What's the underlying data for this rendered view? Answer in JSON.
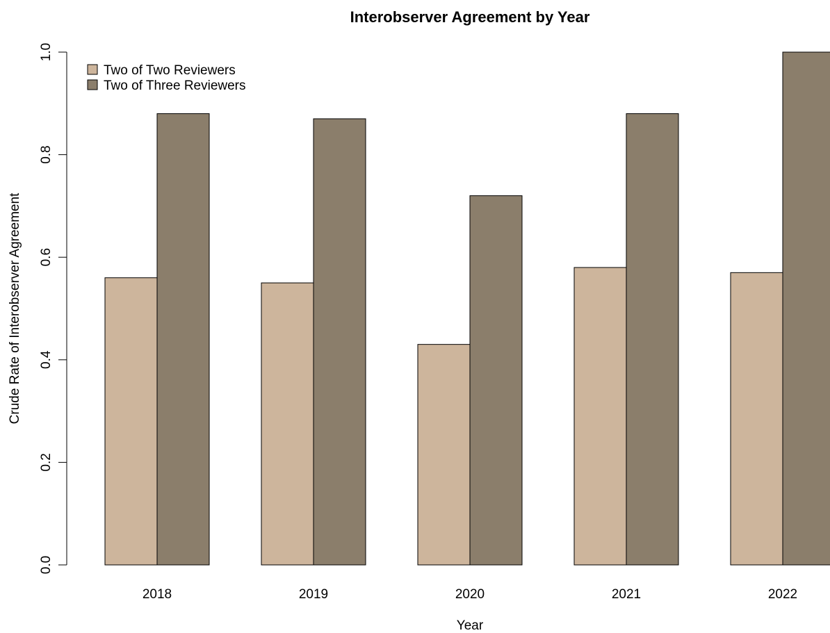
{
  "chart_data": {
    "type": "bar",
    "title": "Interobserver Agreement by Year",
    "xlabel": "Year",
    "ylabel": "Crude Rate of Interobserver Agreement",
    "categories": [
      "2018",
      "2019",
      "2020",
      "2021",
      "2022"
    ],
    "series": [
      {
        "name": "Two of Two Reviewers",
        "color": "#cdb59c",
        "values": [
          0.56,
          0.55,
          0.43,
          0.58,
          0.57
        ]
      },
      {
        "name": "Two of Three Reviewers",
        "color": "#8b7e6b",
        "values": [
          0.88,
          0.87,
          0.72,
          0.88,
          1.0
        ]
      }
    ],
    "ylim": [
      0,
      1.0
    ],
    "yticks": [
      "0.0",
      "0.2",
      "0.4",
      "0.6",
      "0.8",
      "1.0"
    ],
    "grid": false,
    "legend_position": "top-left"
  }
}
